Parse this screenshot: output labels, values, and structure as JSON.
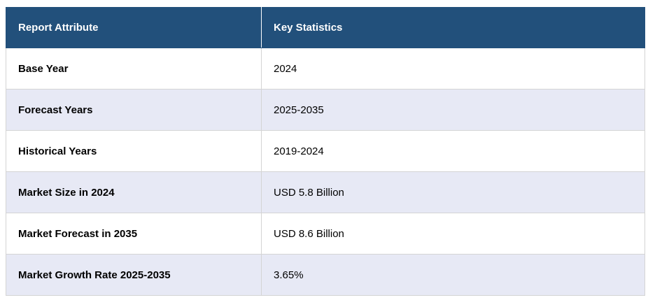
{
  "table": {
    "header": [
      "Report Attribute",
      "Key Statistics"
    ],
    "rows": [
      [
        "Base Year",
        "2024"
      ],
      [
        "Forecast Years",
        "2025-2035"
      ],
      [
        "Historical Years",
        "2019-2024"
      ],
      [
        "Market Size in 2024",
        "USD 5.8 Billion"
      ],
      [
        "Market Forecast in 2035",
        "USD 8.6 Billion"
      ],
      [
        "Market Growth Rate 2025-2035",
        "3.65%"
      ]
    ]
  }
}
